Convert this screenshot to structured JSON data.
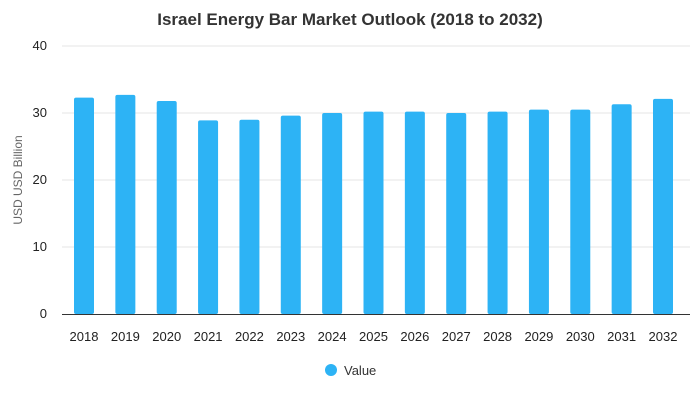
{
  "colors": {
    "bar": "#2db3f5",
    "grid": "#e6e6e6",
    "axis": "#333333"
  },
  "chart_data": {
    "type": "bar",
    "title": "Israel Energy Bar Market Outlook (2018 to 2032)",
    "xlabel": "",
    "ylabel": "USD USD Billion",
    "ylim": [
      0,
      40
    ],
    "yticks": [
      0,
      10,
      20,
      30,
      40
    ],
    "grid": true,
    "legend_position": "bottom",
    "categories": [
      "2018",
      "2019",
      "2020",
      "2021",
      "2022",
      "2023",
      "2024",
      "2025",
      "2026",
      "2027",
      "2028",
      "2029",
      "2030",
      "2031",
      "2032"
    ],
    "series": [
      {
        "name": "Value",
        "values": [
          32.3,
          32.7,
          31.8,
          28.9,
          29.0,
          29.6,
          30.0,
          30.2,
          30.2,
          30.0,
          30.2,
          30.5,
          30.5,
          31.3,
          32.1
        ]
      }
    ]
  }
}
